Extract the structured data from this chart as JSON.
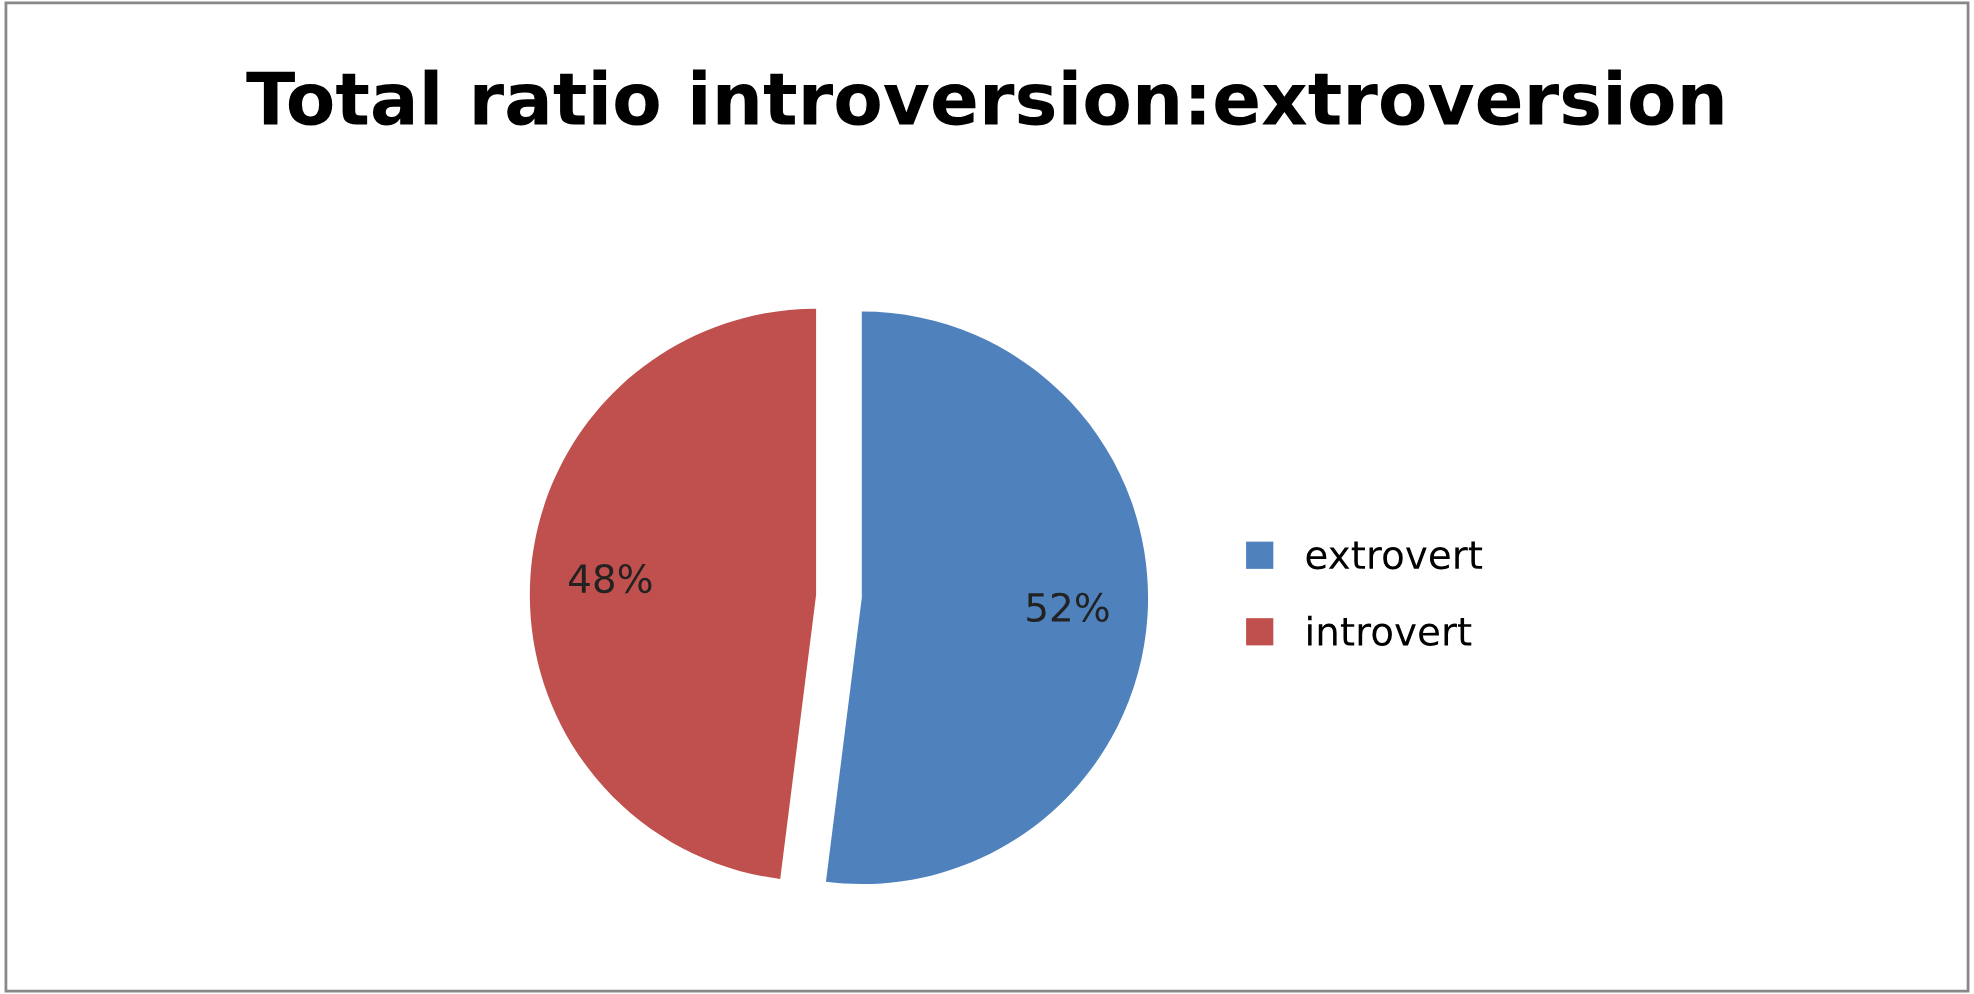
{
  "chart_data": {
    "type": "pie",
    "title": "Total ratio introversion:extroversion",
    "categories": [
      "extrovert",
      "introvert"
    ],
    "values": [
      52,
      48
    ],
    "colors": [
      "#4f81bd",
      "#c0504d"
    ],
    "value_labels": [
      "52%",
      "48%"
    ],
    "legend": "right"
  }
}
